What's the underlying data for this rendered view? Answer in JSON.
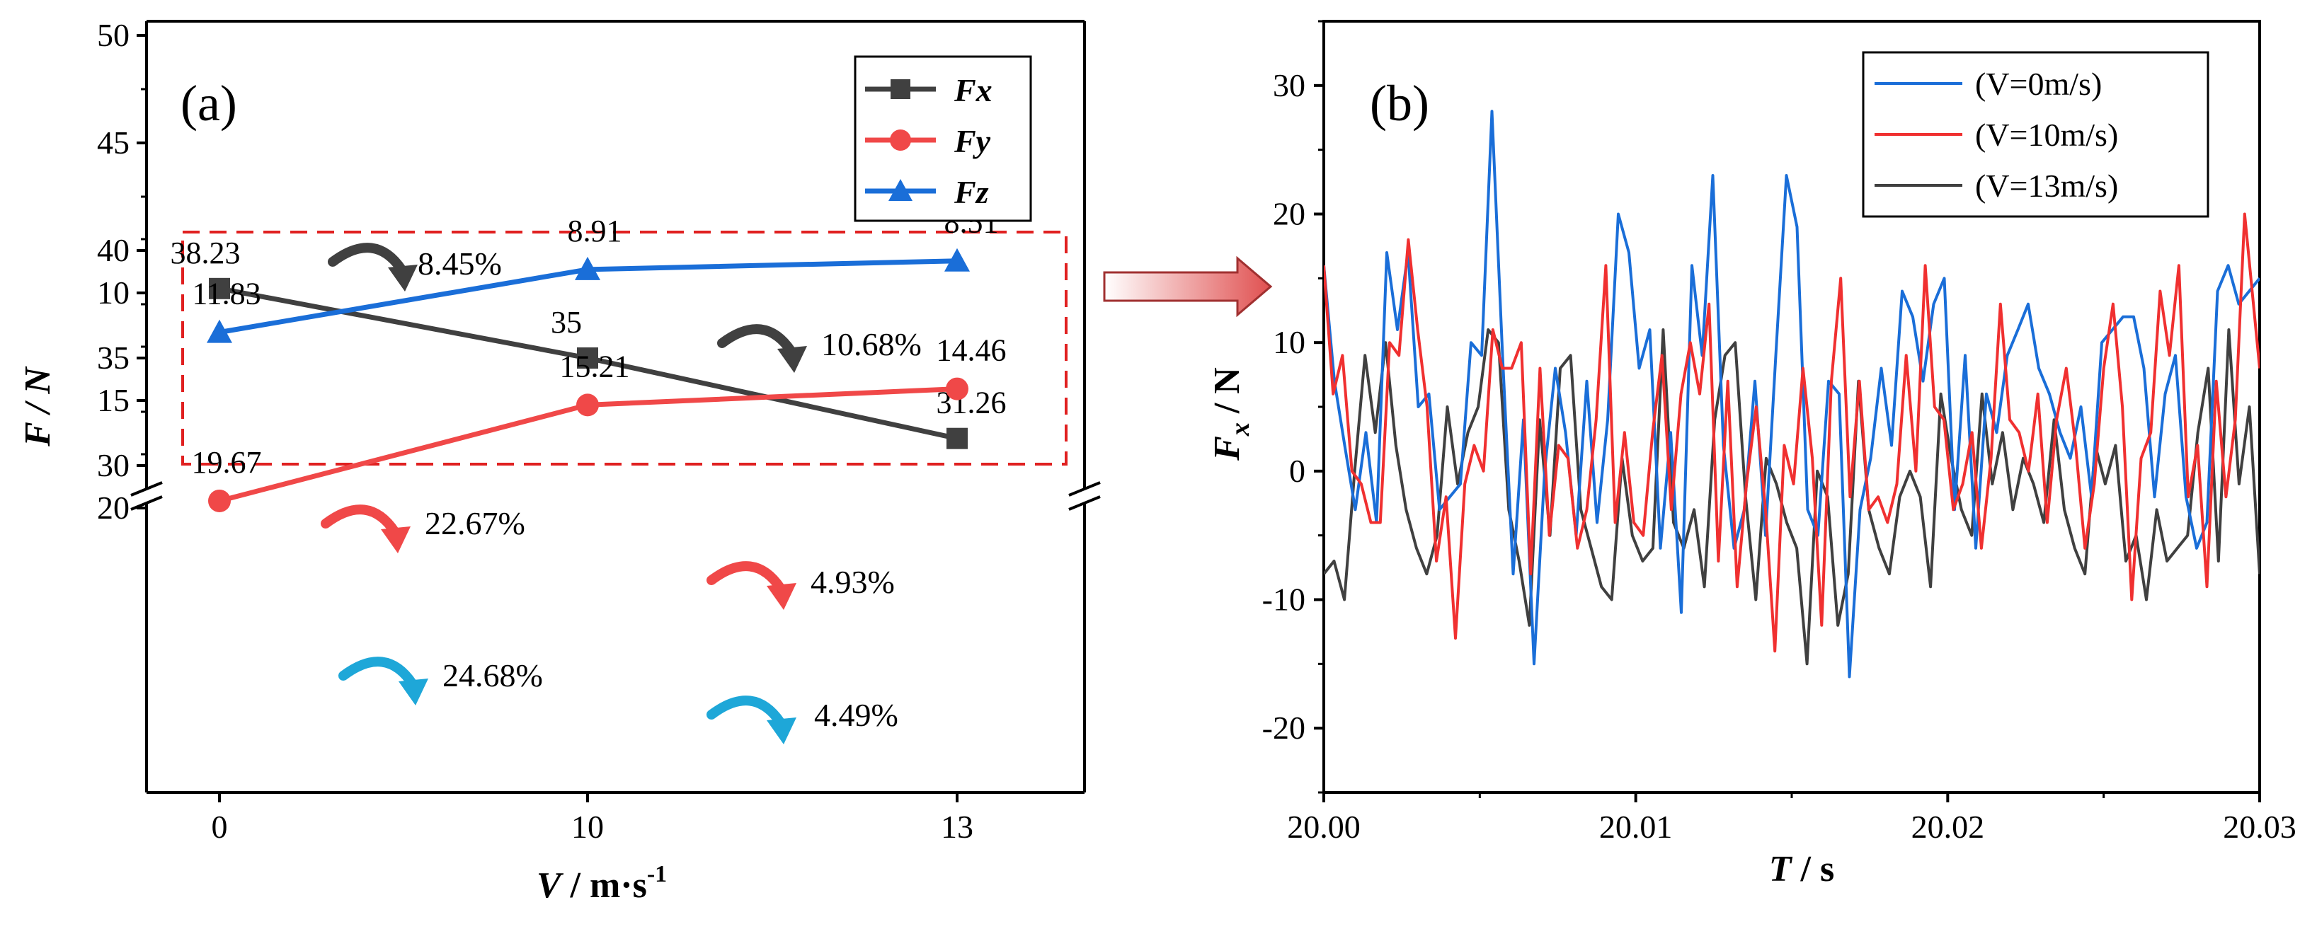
{
  "figure": {
    "panel_a_label": "(a)",
    "panel_b_label": "(b)"
  },
  "chart_data": [
    {
      "type": "line",
      "panel": "(a)",
      "xlabel": "V / m·s-1",
      "ylabel": "F / N",
      "categories": [
        "0",
        "10",
        "13"
      ],
      "x": [
        0,
        10,
        13
      ],
      "y_axis_break": [
        20,
        30
      ],
      "ylim": [
        7,
        50
      ],
      "yticks": [
        10,
        15,
        20,
        30,
        35,
        40,
        45,
        50
      ],
      "legend_position": "top-right",
      "series": [
        {
          "name": "Fx",
          "marker": "square",
          "color": "#404040",
          "values": [
            38.23,
            35,
            31.26
          ],
          "labels": [
            "38.23",
            "35",
            "31.26"
          ]
        },
        {
          "name": "Fy",
          "marker": "circle",
          "color": "#f04848",
          "values": [
            19.67,
            15.21,
            14.46
          ],
          "labels": [
            "19.67",
            "15.21",
            "14.46"
          ]
        },
        {
          "name": "Fz",
          "marker": "triangle",
          "color": "#1a6ed8",
          "values": [
            11.83,
            8.91,
            8.51
          ],
          "labels": [
            "11.83",
            "8.91",
            "8.51"
          ]
        }
      ],
      "annotations": [
        {
          "series": "Fx",
          "text": "8.45%",
          "color": "#404040"
        },
        {
          "series": "Fx",
          "text": "10.68%",
          "color": "#404040"
        },
        {
          "series": "Fy",
          "text": "22.67%",
          "color": "#f04848"
        },
        {
          "series": "Fy",
          "text": "4.93%",
          "color": "#f04848"
        },
        {
          "series": "Fz",
          "text": "24.68%",
          "color": "#1ea7d8"
        },
        {
          "series": "Fz",
          "text": "4.49%",
          "color": "#1ea7d8"
        }
      ],
      "highlight_box_color": "#e02020"
    },
    {
      "type": "line",
      "panel": "(b)",
      "xlabel": "T / s",
      "ylabel": "Fx / N",
      "xlim": [
        20.0,
        20.03
      ],
      "ylim": [
        -25,
        35
      ],
      "xticks": [
        "20.00",
        "20.01",
        "20.02",
        "20.03"
      ],
      "yticks": [
        -20,
        -10,
        0,
        10,
        20,
        30
      ],
      "legend_position": "top-right",
      "x_start": 20.0,
      "x_end": 20.03,
      "series": [
        {
          "name": "(V=0m/s)",
          "color": "#1a6ed8",
          "values": [
            16,
            7,
            2,
            -3,
            3,
            -4,
            17,
            11,
            17,
            5,
            6,
            -3,
            -2,
            -1,
            10,
            9,
            28,
            9,
            -8,
            4,
            -15,
            0,
            8,
            3,
            -5,
            7,
            -4,
            4,
            20,
            17,
            8,
            11,
            -6,
            3,
            -11,
            16,
            9,
            23,
            2,
            -6,
            -3,
            7,
            -5,
            9,
            23,
            19,
            -3,
            -5,
            7,
            6,
            -16,
            -3,
            1,
            8,
            2,
            14,
            12,
            7,
            13,
            15,
            -3,
            9,
            -6,
            6,
            3,
            9,
            11,
            13,
            8,
            6,
            3,
            1,
            5,
            -2,
            10,
            11,
            12,
            12,
            8,
            -2,
            6,
            9,
            -2,
            -6,
            -4,
            14,
            16,
            13,
            15
          ],
          "x": [
            20.0,
            20.00034,
            20.00067,
            20.00101,
            20.00135,
            20.00169,
            20.00202,
            20.00236,
            20.0027,
            20.00303,
            20.00337,
            20.00371,
            20.00404,
            20.00438,
            20.00472,
            20.00506,
            20.00539,
            20.00573,
            20.00607,
            20.0064,
            20.00674,
            20.00708,
            20.00742,
            20.00775,
            20.00809,
            20.00843,
            20.00876,
            20.0091,
            20.00944,
            20.00978,
            20.01011,
            20.01045,
            20.01079,
            20.01112,
            20.01146,
            20.0118,
            20.01213,
            20.01247,
            20.01281,
            20.01315,
            20.01348,
            20.01382,
            20.01416,
            20.01449,
            20.01483,
            20.01517,
            20.01551,
            20.01584,
            20.01618,
            20.01652,
            20.01685,
            20.01719,
            20.01753,
            20.01787,
            20.0182,
            20.01854,
            20.01888,
            20.01921,
            20.01955,
            20.01989,
            20.02022,
            20.02056,
            20.0209,
            20.02124,
            20.02157,
            20.02191,
            20.02225,
            20.02258,
            20.02292,
            20.02326,
            20.0236,
            20.02393,
            20.02427,
            20.02461,
            20.02494,
            20.02528,
            20.02562,
            20.02596,
            20.02629,
            20.02663,
            20.02697,
            20.0273,
            20.02764,
            20.02798,
            20.02831,
            20.02865,
            20.02899,
            20.02933,
            20.03
          ]
        },
        {
          "name": "(V=10m/s)",
          "color": "#f03030",
          "values": [
            16,
            6,
            9,
            0,
            -1,
            -4,
            -4,
            10,
            9,
            18,
            11,
            5,
            -7,
            -2,
            -13,
            -1,
            2,
            0,
            11,
            8,
            8,
            10,
            -8,
            8,
            -5,
            2,
            1,
            -6,
            -3,
            4,
            16,
            -4,
            3,
            -4,
            -5,
            3,
            9,
            -3,
            6,
            10,
            6,
            13,
            -7,
            7,
            -9,
            -1,
            5,
            -3,
            -14,
            2,
            -1,
            8,
            1,
            -12,
            7,
            15,
            -2,
            7,
            -3,
            -2,
            -4,
            -1,
            9,
            0,
            16,
            5,
            4,
            -3,
            -1,
            3,
            -6,
            1,
            13,
            4,
            3,
            0,
            6,
            -4,
            4,
            8,
            2,
            -6,
            -1,
            8,
            13,
            5,
            -10,
            1,
            3,
            14,
            9,
            16,
            -2,
            2,
            -9,
            7,
            -2,
            4,
            20,
            8
          ],
          "x": [
            20.0,
            20.0003,
            20.0006,
            20.0009,
            20.0012,
            20.00151,
            20.00181,
            20.00211,
            20.00241,
            20.00271,
            20.00301,
            20.00331,
            20.00361,
            20.00392,
            20.00422,
            20.00452,
            20.00482,
            20.00512,
            20.00542,
            20.00572,
            20.00602,
            20.00633,
            20.00663,
            20.00693,
            20.00723,
            20.00753,
            20.00783,
            20.00813,
            20.00843,
            20.00873,
            20.00904,
            20.00934,
            20.00964,
            20.00994,
            20.01024,
            20.01054,
            20.01084,
            20.01114,
            20.01145,
            20.01175,
            20.01205,
            20.01235,
            20.01265,
            20.01295,
            20.01325,
            20.01355,
            20.01386,
            20.01416,
            20.01446,
            20.01476,
            20.01506,
            20.01536,
            20.01566,
            20.01596,
            20.01627,
            20.01657,
            20.01687,
            20.01717,
            20.01747,
            20.01777,
            20.01807,
            20.01837,
            20.01867,
            20.01898,
            20.01928,
            20.01958,
            20.01988,
            20.02018,
            20.02048,
            20.02078,
            20.02108,
            20.02139,
            20.02169,
            20.02199,
            20.02229,
            20.02259,
            20.02289,
            20.02319,
            20.02349,
            20.0238,
            20.0241,
            20.0244,
            20.0247,
            20.025,
            20.0253,
            20.0256,
            20.0259,
            20.0262,
            20.02651,
            20.02681,
            20.02711,
            20.02741,
            20.02771,
            20.02801,
            20.02831,
            20.02861,
            20.02892,
            20.02922,
            20.02952,
            20.03
          ]
        },
        {
          "name": "(V=13m/s)",
          "color": "#404040",
          "values": [
            -8,
            -7,
            -10,
            0,
            9,
            3,
            10,
            2,
            -3,
            -6,
            -8,
            -5,
            5,
            -1,
            3,
            5,
            11,
            10,
            -3,
            -7,
            -12,
            4,
            -5,
            8,
            9,
            -3,
            -6,
            -9,
            -10,
            1,
            -5,
            -7,
            -6,
            11,
            -4,
            -6,
            -3,
            -9,
            4,
            9,
            10,
            -2,
            -10,
            1,
            -1,
            -4,
            -6,
            -15,
            0,
            -2,
            -12,
            -8,
            7,
            -3,
            -6,
            -8,
            -2,
            0,
            -2,
            -9,
            6,
            1,
            -3,
            -5,
            6,
            -1,
            3,
            -3,
            1,
            -1,
            -4,
            4,
            -3,
            -6,
            -8,
            2,
            -1,
            2,
            -7,
            -5,
            -10,
            -3,
            -7,
            -6,
            -5,
            3,
            8,
            -7,
            11,
            -1,
            5,
            -8
          ],
          "x": [
            20.0,
            20.00033,
            20.00066,
            20.00099,
            20.00132,
            20.00165,
            20.00198,
            20.00231,
            20.00264,
            20.00297,
            20.0033,
            20.00363,
            20.00396,
            20.00429,
            20.00462,
            20.00495,
            20.00527,
            20.0056,
            20.00593,
            20.00626,
            20.00659,
            20.00692,
            20.00725,
            20.00758,
            20.00791,
            20.00824,
            20.00857,
            20.0089,
            20.00923,
            20.00956,
            20.00989,
            20.01022,
            20.01055,
            20.01088,
            20.01121,
            20.01154,
            20.01187,
            20.0122,
            20.01253,
            20.01286,
            20.01319,
            20.01352,
            20.01385,
            20.01418,
            20.01451,
            20.01484,
            20.01516,
            20.01549,
            20.01582,
            20.01615,
            20.01648,
            20.01681,
            20.01714,
            20.01747,
            20.0178,
            20.01813,
            20.01846,
            20.01879,
            20.01912,
            20.01945,
            20.01978,
            20.02011,
            20.02044,
            20.02077,
            20.0211,
            20.02143,
            20.02176,
            20.02209,
            20.02242,
            20.02275,
            20.02308,
            20.02341,
            20.02374,
            20.02407,
            20.0244,
            20.02473,
            20.02505,
            20.02538,
            20.02571,
            20.02604,
            20.02637,
            20.0267,
            20.02703,
            20.02736,
            20.02769,
            20.02802,
            20.02835,
            20.02868,
            20.02901,
            20.02934,
            20.02967,
            20.03
          ]
        }
      ]
    }
  ]
}
